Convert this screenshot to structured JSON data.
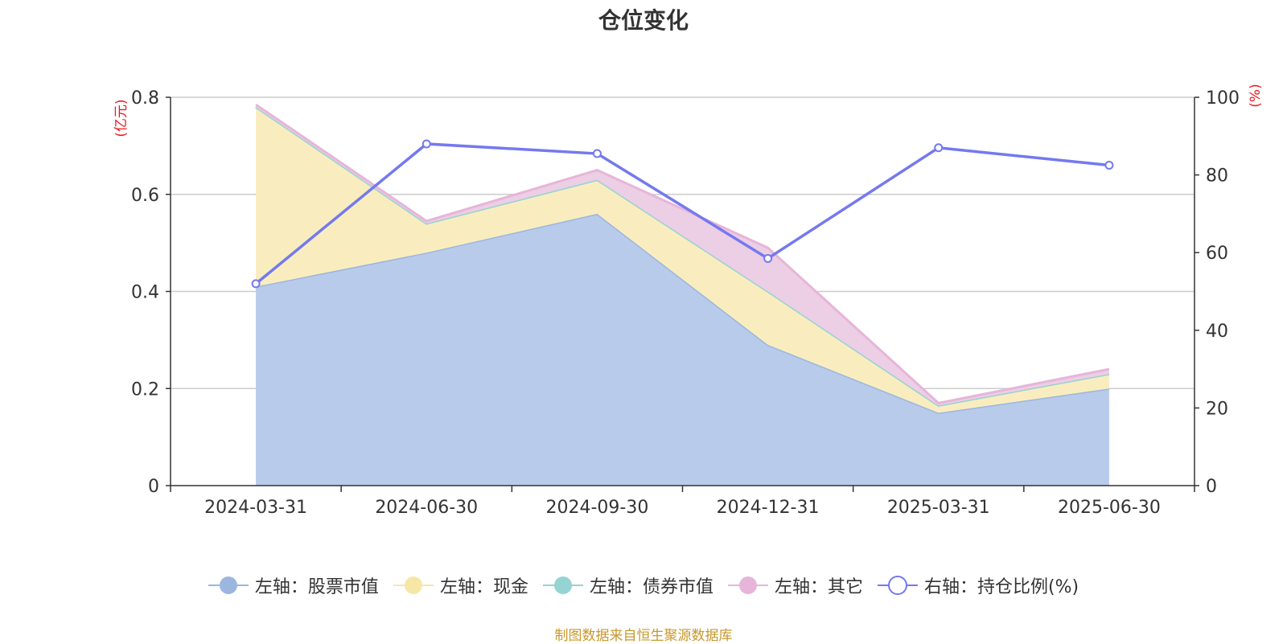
{
  "title": "仓位变化",
  "source": "制图数据来自恒生聚源数据库",
  "chart_data": {
    "type": "area",
    "categories": [
      "2024-03-31",
      "2024-06-30",
      "2024-09-30",
      "2024-12-31",
      "2025-03-31",
      "2025-06-30"
    ],
    "left_axis": {
      "unit": "(亿元)",
      "ylim": [
        0,
        0.8
      ],
      "ticks": [
        "0",
        "0.2",
        "0.4",
        "0.6",
        "0.8"
      ]
    },
    "right_axis": {
      "unit": "(%)",
      "ylim": [
        0,
        100
      ],
      "ticks": [
        "0",
        "20",
        "40",
        "60",
        "80",
        "100"
      ]
    },
    "series": [
      {
        "name": "左轴：股票市值",
        "axis": "left",
        "stacked": true,
        "color": "#9bb6df",
        "fill": "#b8cbea",
        "values": [
          0.41,
          0.48,
          0.56,
          0.29,
          0.15,
          0.2
        ]
      },
      {
        "name": "左轴：现金",
        "axis": "left",
        "stacked": true,
        "color": "#f7e7a6",
        "fill": "#f9edbf",
        "values": [
          0.37,
          0.06,
          0.07,
          0.11,
          0.015,
          0.03
        ]
      },
      {
        "name": "左轴：债券市值",
        "axis": "left",
        "stacked": true,
        "color": "#96d3d3",
        "fill": "#b4e0e0",
        "values": [
          0,
          0,
          0,
          0,
          0,
          0
        ]
      },
      {
        "name": "左轴：其它",
        "axis": "left",
        "stacked": true,
        "color": "#e7b5d9",
        "fill": "#eccee5",
        "values": [
          0.005,
          0.005,
          0.02,
          0.09,
          0.005,
          0.01
        ]
      },
      {
        "name": "右轴：持仓比例(%)",
        "axis": "right",
        "type": "line",
        "color": "#7479ef",
        "values": [
          52,
          88,
          85.5,
          58.5,
          87,
          82.5
        ]
      }
    ],
    "grid": true,
    "legend_position": "bottom"
  }
}
